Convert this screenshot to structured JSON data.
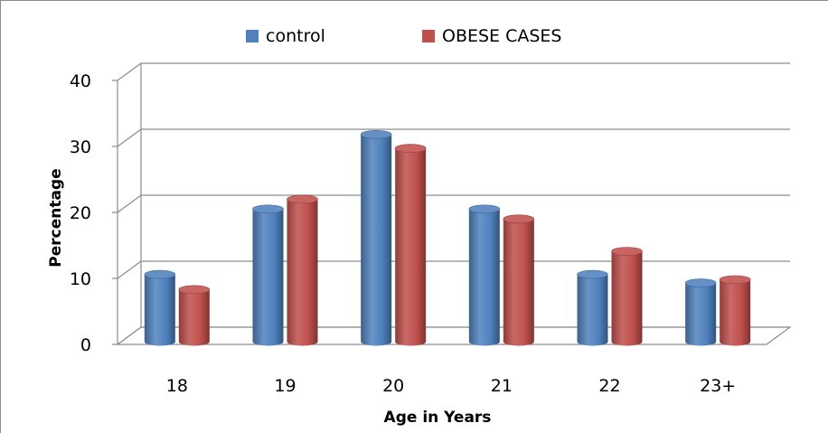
{
  "chart_data": {
    "type": "bar",
    "categories": [
      "18",
      "19",
      "20",
      "21",
      "22",
      "23+"
    ],
    "series": [
      {
        "name": "control",
        "values": [
          10.2,
          20.1,
          31.4,
          20.1,
          10.2,
          8.9
        ],
        "color": "#4f81bd"
      },
      {
        "name": "OBESE CASES",
        "values": [
          7.9,
          21.6,
          29.3,
          18.6,
          13.7,
          9.4
        ],
        "color": "#c0504d"
      }
    ],
    "title": "",
    "xlabel": "Age in Years",
    "ylabel": "Percentage",
    "ylim": [
      0,
      40
    ],
    "yticks": [
      "0",
      "10",
      "20",
      "30",
      "40"
    ],
    "grid": true,
    "legend": "top",
    "style": "3d-cylinder"
  }
}
